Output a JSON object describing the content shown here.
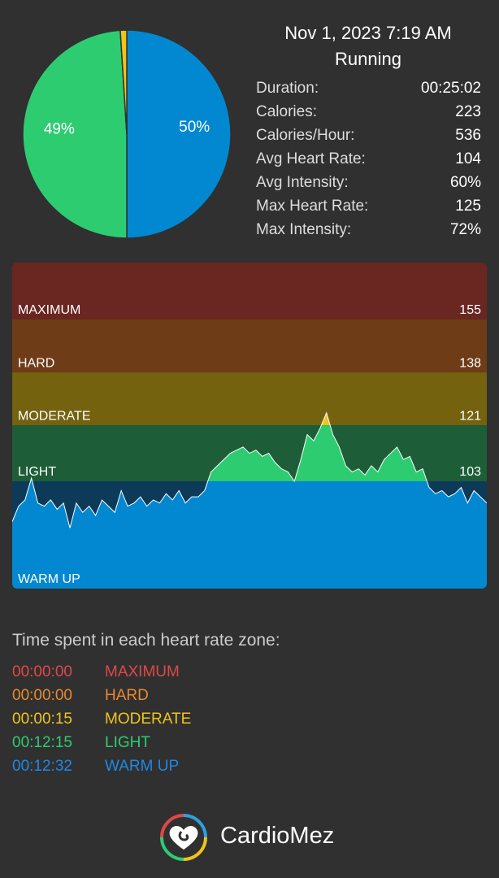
{
  "header": {
    "date": "Nov 1, 2023 7:19 AM",
    "activity": "Running",
    "stats": [
      {
        "label": "Duration:",
        "value": "00:25:02"
      },
      {
        "label": "Calories:",
        "value": "223"
      },
      {
        "label": "Calories/Hour:",
        "value": "536"
      },
      {
        "label": "Avg Heart Rate:",
        "value": "104"
      },
      {
        "label": "Avg Intensity:",
        "value": "60%"
      },
      {
        "label": "Max Heart Rate:",
        "value": "125"
      },
      {
        "label": "Max Intensity:",
        "value": "72%"
      }
    ]
  },
  "chart_data": [
    {
      "type": "pie",
      "values": [
        50,
        49,
        1
      ],
      "value_labels": [
        "50%",
        "49%",
        null
      ],
      "colors": [
        "#0288d1",
        "#2ecc71",
        "#f0c419"
      ]
    },
    {
      "type": "area",
      "ylim": [
        68.5,
        173.3
      ],
      "zones": [
        {
          "name": "MAXIMUM",
          "threshold": 155,
          "band": "#6a2620",
          "fill": "#e04848"
        },
        {
          "name": "HARD",
          "threshold": 138,
          "band": "#6e3c17",
          "fill": "#e98a2e"
        },
        {
          "name": "MODERATE",
          "threshold": 121,
          "band": "#74620f",
          "fill": "#f0c419"
        },
        {
          "name": "LIGHT",
          "threshold": 103,
          "band": "#1d5e38",
          "fill": "#2ecc71"
        },
        {
          "name": "WARM UP",
          "band": "#0d3a58",
          "fill": "#0288d1"
        }
      ],
      "values": [
        90,
        95,
        97,
        104,
        96,
        95,
        97,
        94,
        96,
        88,
        96,
        93,
        95,
        92,
        97,
        95,
        93,
        100,
        95,
        96,
        98,
        95,
        97,
        96,
        99,
        97,
        100,
        96,
        98,
        98,
        100,
        106,
        108,
        110,
        112,
        113,
        114,
        112,
        113,
        111,
        112,
        109,
        107,
        106,
        103,
        110,
        118,
        116,
        120,
        125,
        118,
        114,
        108,
        106,
        107,
        105,
        108,
        106,
        110,
        112,
        114,
        110,
        111,
        106,
        107,
        101,
        99,
        100,
        98,
        99,
        101,
        96,
        100,
        98,
        96
      ]
    }
  ],
  "time_in_zones": {
    "title": "Time spent in each heart rate zone:",
    "rows": [
      {
        "time": "00:00:00",
        "zone": "MAXIMUM",
        "color": "#e04848"
      },
      {
        "time": "00:00:00",
        "zone": "HARD",
        "color": "#e98a2e"
      },
      {
        "time": "00:00:15",
        "zone": "MODERATE",
        "color": "#f0c419"
      },
      {
        "time": "00:12:15",
        "zone": "LIGHT",
        "color": "#2ecc71"
      },
      {
        "time": "00:12:32",
        "zone": "WARM UP",
        "color": "#1e88e5"
      }
    ]
  },
  "footer": {
    "brand": "CardioMez"
  }
}
